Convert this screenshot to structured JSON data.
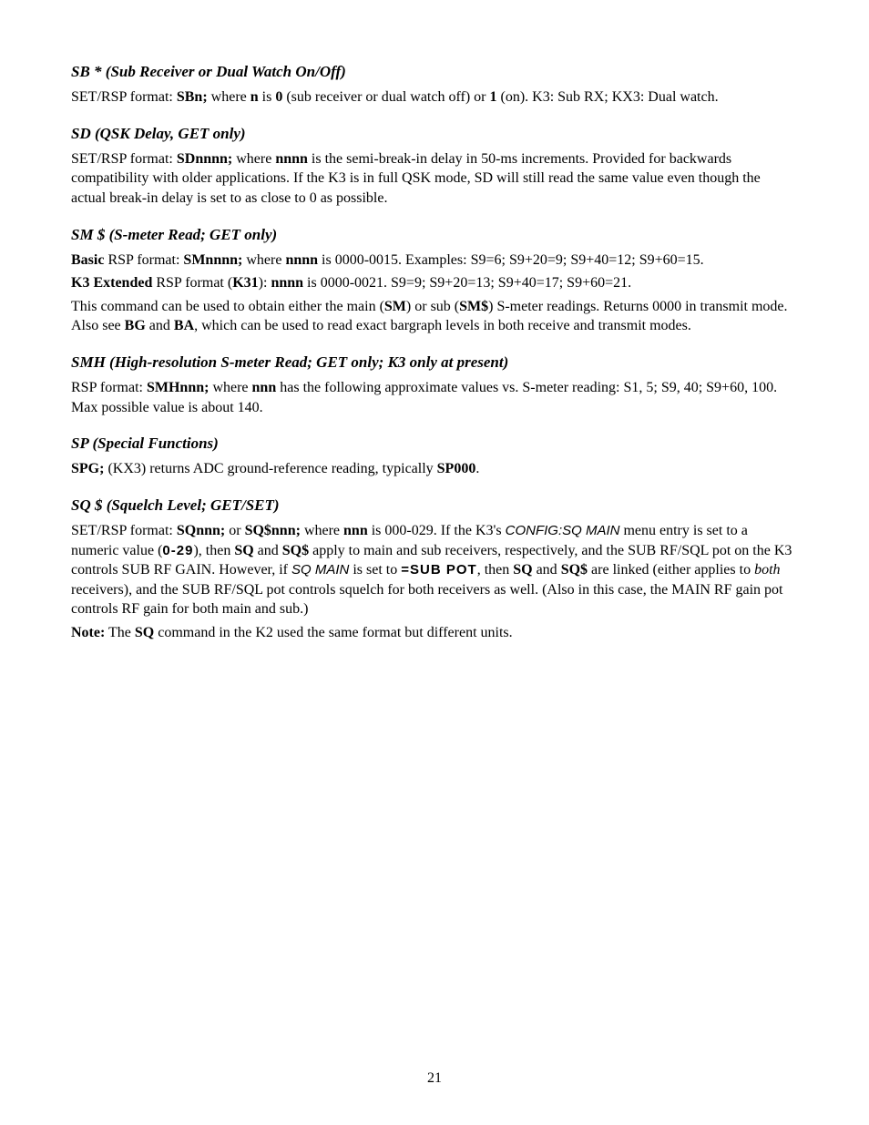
{
  "page_number": "21",
  "sections": {
    "sb": {
      "heading": "SB * (Sub Receiver or Dual Watch On/Off)",
      "p1a": "SET/RSP format:  ",
      "p1b": "SBn;",
      "p1c": "  where  ",
      "p1d": "n",
      "p1e": "  is ",
      "p1f": "0",
      "p1g": " (sub receiver or dual watch off) or ",
      "p1h": "1",
      "p1i": " (on). K3: Sub RX; KX3: Dual watch."
    },
    "sd": {
      "heading": "SD (QSK Delay, GET only)",
      "p1a": "SET/RSP format:  ",
      "p1b": "SDnnnn;",
      "p1c": "  where  ",
      "p1d": "nnnn",
      "p1e": "  is the semi-break-in delay in 50-ms increments. Provided for backwards compatibility with older applications. If the K3 is in full QSK mode, SD will still read the same value even though the actual break-in delay is set to as close to 0 as possible."
    },
    "sm": {
      "heading": "SM $ (S-meter Read; GET only)",
      "p1a": "Basic",
      "p1b": " RSP format:  ",
      "p1c": "SMnnnn;",
      "p1d": "  where ",
      "p1e": "nnnn",
      "p1f": " is 0000-0015. Examples: S9=6; S9+20=9; S9+40=12; S9+60=15.",
      "p2a": "K3 Extended",
      "p2b": " RSP format (",
      "p2c": "K31",
      "p2d": "): ",
      "p2e": "nnnn",
      "p2f": " is 0000-0021. S9=9; S9+20=13; S9+40=17; S9+60=21.",
      "p3a": "This command can be used to obtain either the main (",
      "p3b": "SM",
      "p3c": ") or sub (",
      "p3d": "SM$",
      "p3e": ") S-meter readings. Returns 0000 in transmit mode. Also see ",
      "p3f": "BG",
      "p3g": " and ",
      "p3h": "BA",
      "p3i": ", which can be used to read exact bargraph levels in both receive and transmit modes."
    },
    "smh": {
      "heading": "SMH (High-resolution S-meter Read; GET only; K3 only at present)",
      "p1a": "RSP format:  ",
      "p1b": "SMHnnn;",
      "p1c": "  where ",
      "p1d": "nnn",
      "p1e": " has the following approximate values vs. S-meter reading:  S1, 5; S9, 40; S9+60, 100. Max possible value is about 140."
    },
    "sp": {
      "heading": "SP  (Special Functions)",
      "p1a": "SPG;",
      "p1b": "  (KX3) returns ADC ground-reference reading, typically ",
      "p1c": "SP000",
      "p1d": "."
    },
    "sq": {
      "heading": "SQ $  (Squelch Level; GET/SET)",
      "p1a": "SET/RSP format:  ",
      "p1b": "SQnnn;",
      "p1c": "  or ",
      "p1d": "SQ$nnn;",
      "p1e": "  where ",
      "p1f": "nnn",
      "p1g": " is 000-029. If the K3's ",
      "p1h": "CONFIG:SQ MAIN",
      "p1i": " menu entry is set to a numeric value (",
      "p1j": "0-29",
      "p1k": "), then ",
      "p1l": "SQ",
      "p1m": " and ",
      "p1n": "SQ$",
      "p1o": " apply to main and sub receivers, respectively, and the SUB RF/SQL pot on the K3 controls SUB RF GAIN. However, if ",
      "p1p": "SQ MAIN",
      "p1q": " is set to ",
      "p1r": "=SUB POT",
      "p1s": ", then ",
      "p1t": "SQ",
      "p1u": " and ",
      "p1v": "SQ$",
      "p1w": " are linked (either applies to ",
      "p1x": "both",
      "p1y": " receivers), and the SUB RF/SQL pot controls squelch for both receivers as well. (Also in this case, the MAIN RF gain pot controls RF gain for both main and sub.)",
      "p2a": "Note:",
      "p2b": " The ",
      "p2c": "SQ",
      "p2d": " command in the K2 used the same format but different units."
    }
  }
}
